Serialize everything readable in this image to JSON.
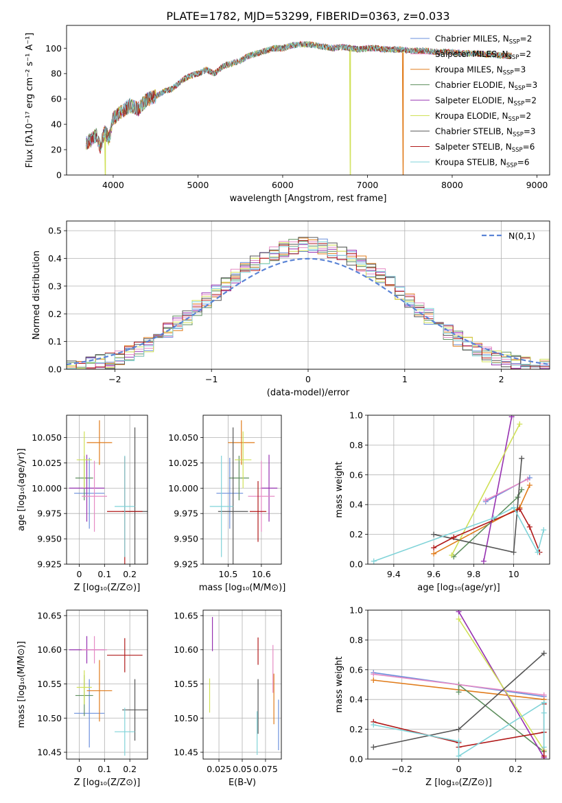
{
  "title": "PLATE=1782, MJD=53299, FIBERID=0363, z=0.033",
  "colors": [
    "#6a8fdc",
    "#e07b1a",
    "#5e8f5e",
    "#9630b0",
    "#e58ac4",
    "#cfe055",
    "#555555",
    "#b01818",
    "#7fd3d8"
  ],
  "chart_data": [
    {
      "id": "spectrum",
      "type": "line",
      "xlabel": "wavelength [Angstrom, rest frame]",
      "ylabel": "Flux [fλ10⁻¹⁷ erg cm⁻² s⁻¹ A⁻¹]",
      "xlim": [
        3450,
        9150
      ],
      "ylim": [
        0,
        118
      ],
      "xticks": [
        4000,
        5000,
        6000,
        7000,
        8000,
        9000
      ],
      "yticks": [
        0,
        20,
        40,
        60,
        80,
        100
      ],
      "legend_position": "right",
      "legend": [
        "Chabrier MILES, N_SSP=2",
        "Salpeter MILES, N_SSP=2",
        "Kroupa MILES, N_SSP=3",
        "Chabrier ELODIE, N_SSP=3",
        "Salpeter ELODIE, N_SSP=2",
        "Kroupa ELODIE, N_SSP=2",
        "Chabrier STELIB, N_SSP=3",
        "Salpeter STELIB, N_SSP=6",
        "Kroupa STELIB, N_SSP=6"
      ],
      "legend_colors": [
        "#6a8fdc",
        "#e58ac4",
        "#e07b1a",
        "#5e8f5e",
        "#9630b0",
        "#cfe055",
        "#555555",
        "#b01818",
        "#7fd3d8"
      ],
      "x": [
        3680,
        3750,
        3800,
        3850,
        3900,
        3950,
        4000,
        4100,
        4200,
        4300,
        4400,
        4500,
        4600,
        4700,
        4800,
        4900,
        5000,
        5100,
        5200,
        5300,
        5400,
        5500,
        5600,
        5700,
        5800,
        5900,
        6000,
        6100,
        6200,
        6300,
        6400,
        6500,
        6600,
        6700,
        6800,
        6900,
        7000,
        7100,
        7200,
        7300,
        7400,
        7500,
        7600,
        7700,
        7800,
        7900,
        8000,
        8100,
        8200,
        8300,
        8400,
        8500,
        8600,
        8700
      ],
      "y": [
        25,
        28,
        32,
        22,
        35,
        28,
        45,
        50,
        55,
        52,
        60,
        62,
        66,
        68,
        74,
        78,
        80,
        83,
        80,
        86,
        88,
        90,
        94,
        96,
        98,
        100,
        100,
        102,
        103,
        103,
        102,
        101,
        100,
        101,
        100,
        99,
        100,
        100,
        99,
        99,
        99,
        98,
        98,
        98,
        97,
        97,
        97,
        96,
        96,
        96,
        95,
        95,
        94,
        94
      ],
      "cutoffs": [
        {
          "series": "Kroupa ELODIE, N_SSP=2",
          "x": 3910
        },
        {
          "series": "Kroupa ELODIE, N_SSP=2",
          "x": 6800
        },
        {
          "series": "Kroupa MILES, N_SSP=3",
          "x": 7420
        }
      ]
    },
    {
      "id": "residuals",
      "type": "histogram",
      "xlabel": "(data-model)/error",
      "ylabel": "Normed distribution",
      "xlim": [
        -2.5,
        2.5
      ],
      "ylim": [
        0,
        0.535
      ],
      "xticks": [
        -2,
        -1,
        0,
        1,
        2
      ],
      "yticks": [
        0.0,
        0.1,
        0.2,
        0.3,
        0.4,
        0.5
      ],
      "bin_width": 0.1,
      "legend_position": "top-right",
      "legend": [
        "N(0,1)"
      ],
      "curve": "normal pdf, mean 0, sigma 1"
    },
    {
      "id": "age_vs_Z",
      "type": "errorbar",
      "xlabel": "Z [log₁₀(Z/Z⊙)]",
      "ylabel": "age  [log₁₀(age/yr)]",
      "xlim": [
        -0.05,
        0.27
      ],
      "ylim": [
        9.925,
        10.072
      ],
      "xticks": [
        0.0,
        0.1,
        0.2
      ],
      "yticks": [
        9.925,
        9.95,
        9.975,
        10.0,
        10.025,
        10.05
      ],
      "points": [
        {
          "x": 0.04,
          "xerr": 0.06,
          "y": 9.995,
          "yerr": 0.035,
          "color": "#6a8fdc"
        },
        {
          "x": 0.08,
          "xerr": 0.05,
          "y": 10.045,
          "yerr": 0.022,
          "color": "#e07b1a"
        },
        {
          "x": 0.02,
          "xerr": 0.035,
          "y": 10.01,
          "yerr": 0.022,
          "color": "#5e8f5e"
        },
        {
          "x": 0.03,
          "xerr": 0.07,
          "y": 10.0,
          "yerr": 0.033,
          "color": "#9630b0"
        },
        {
          "x": 0.06,
          "xerr": 0.05,
          "y": 9.992,
          "yerr": 0.035,
          "color": "#e58ac4"
        },
        {
          "x": 0.02,
          "xerr": 0.03,
          "y": 10.028,
          "yerr": 0.028,
          "color": "#cfe055"
        },
        {
          "x": 0.22,
          "xerr": 0.05,
          "y": 9.977,
          "yerr": 0.083,
          "color": "#555555"
        },
        {
          "x": 0.18,
          "xerr": 0.07,
          "y": 9.977,
          "yerr": 0.054,
          "color": "#b01818"
        },
        {
          "x": 0.18,
          "xerr": 0.04,
          "y": 9.982,
          "yerr": 0.05,
          "color": "#7fd3d8"
        }
      ]
    },
    {
      "id": "age_vs_mass",
      "type": "errorbar",
      "xlabel": "mass [log₁₀(M/M⊙)]",
      "xlim": [
        10.425,
        10.66
      ],
      "ylim": [
        9.925,
        10.072
      ],
      "xticks": [
        10.5,
        10.6
      ],
      "yticks": [
        9.925,
        9.95,
        9.975,
        10.0,
        10.025,
        10.05
      ],
      "points": [
        {
          "x": 10.505,
          "xerr": 0.04,
          "y": 9.995,
          "yerr": 0.035,
          "color": "#6a8fdc"
        },
        {
          "x": 10.54,
          "xerr": 0.04,
          "y": 10.045,
          "yerr": 0.022,
          "color": "#e07b1a"
        },
        {
          "x": 10.533,
          "xerr": 0.03,
          "y": 10.01,
          "yerr": 0.022,
          "color": "#5e8f5e"
        },
        {
          "x": 10.623,
          "xerr": 0.025,
          "y": 10.0,
          "yerr": 0.033,
          "color": "#9630b0"
        },
        {
          "x": 10.6,
          "xerr": 0.04,
          "y": 9.992,
          "yerr": 0.035,
          "color": "#e58ac4"
        },
        {
          "x": 10.545,
          "xerr": 0.025,
          "y": 10.028,
          "yerr": 0.028,
          "color": "#cfe055"
        },
        {
          "x": 10.515,
          "xerr": 0.045,
          "y": 9.977,
          "yerr": 0.083,
          "color": "#555555"
        },
        {
          "x": 10.59,
          "xerr": 0.025,
          "y": 9.977,
          "yerr": 0.03,
          "color": "#b01818"
        },
        {
          "x": 10.48,
          "xerr": 0.035,
          "y": 9.982,
          "yerr": 0.05,
          "color": "#7fd3d8"
        }
      ]
    },
    {
      "id": "weight_vs_age",
      "type": "line",
      "xlabel": "age  [log₁₀(age/yr)]",
      "ylabel": "mass weight",
      "xlim": [
        9.27,
        10.18
      ],
      "ylim": [
        0,
        1
      ],
      "xticks": [
        9.4,
        9.6,
        9.8,
        10.0
      ],
      "yticks": [
        0.0,
        0.2,
        0.4,
        0.6,
        0.8,
        1.0
      ],
      "series": [
        {
          "color": "#6a8fdc",
          "x": [
            10.08,
            9.86
          ],
          "y": [
            0.58,
            0.42
          ]
        },
        {
          "color": "#e07b1a",
          "x": [
            9.6,
            10.03,
            10.08
          ],
          "y": [
            0.07,
            0.38,
            0.53
          ]
        },
        {
          "color": "#5e8f5e",
          "x": [
            9.7,
            10.02,
            10.04
          ],
          "y": [
            0.05,
            0.45,
            0.5
          ]
        },
        {
          "color": "#9630b0",
          "x": [
            9.85,
            9.99
          ],
          "y": [
            0.02,
            0.99
          ]
        },
        {
          "color": "#e58ac4",
          "x": [
            10.07,
            9.86
          ],
          "y": [
            0.57,
            0.43
          ]
        },
        {
          "color": "#cfe055",
          "x": [
            9.69,
            10.03
          ],
          "y": [
            0.06,
            0.94
          ]
        },
        {
          "color": "#555555",
          "x": [
            9.6,
            10.0,
            10.04
          ],
          "y": [
            0.2,
            0.08,
            0.71
          ]
        },
        {
          "color": "#b01818",
          "x": [
            9.6,
            9.7,
            10.03,
            10.08,
            10.13
          ],
          "y": [
            0.11,
            0.18,
            0.37,
            0.25,
            0.08
          ]
        },
        {
          "color": "#7fd3d8",
          "x": [
            9.3,
            9.9,
            10.0,
            10.12,
            10.15
          ],
          "y": [
            0.02,
            0.31,
            0.38,
            0.08,
            0.23
          ]
        }
      ]
    },
    {
      "id": "mass_vs_Z",
      "type": "errorbar",
      "xlabel": "Z [log₁₀(Z/Z⊙)]",
      "ylabel": "mass [log₁₀(M/M⊙)]",
      "xlim": [
        -0.05,
        0.27
      ],
      "ylim": [
        10.44,
        10.658
      ],
      "xticks": [
        0.0,
        0.1,
        0.2
      ],
      "yticks": [
        10.45,
        10.5,
        10.55,
        10.6,
        10.65
      ],
      "points": [
        {
          "x": 0.04,
          "xerr": 0.06,
          "y": 10.507,
          "yerr": 0.05,
          "color": "#6a8fdc"
        },
        {
          "x": 0.08,
          "xerr": 0.05,
          "y": 10.54,
          "yerr": 0.045,
          "color": "#e07b1a"
        },
        {
          "x": 0.02,
          "xerr": 0.035,
          "y": 10.533,
          "yerr": 0.03,
          "color": "#5e8f5e"
        },
        {
          "x": 0.03,
          "xerr": 0.07,
          "y": 10.6,
          "yerr": 0.02,
          "color": "#9630b0"
        },
        {
          "x": 0.06,
          "xerr": 0.05,
          "y": 10.6,
          "yerr": 0.02,
          "color": "#e58ac4"
        },
        {
          "x": 0.02,
          "xerr": 0.03,
          "y": 10.545,
          "yerr": 0.025,
          "color": "#cfe055"
        },
        {
          "x": 0.22,
          "xerr": 0.05,
          "y": 10.512,
          "yerr": 0.045,
          "color": "#555555"
        },
        {
          "x": 0.18,
          "xerr": 0.07,
          "y": 10.592,
          "yerr": 0.025,
          "color": "#b01818"
        },
        {
          "x": 0.18,
          "xerr": 0.04,
          "y": 10.48,
          "yerr": 0.035,
          "color": "#7fd3d8"
        }
      ]
    },
    {
      "id": "mass_vs_ebv",
      "type": "errorbar",
      "xlabel": "E(B-V)",
      "xlim": [
        0.008,
        0.092
      ],
      "ylim": [
        10.44,
        10.658
      ],
      "xticks": [
        0.025,
        0.05,
        0.075
      ],
      "yticks": [
        10.45,
        10.5,
        10.55,
        10.6,
        10.65
      ],
      "points": [
        {
          "x": 0.089,
          "xerr": 0,
          "y": 10.49,
          "yerr": 0.037,
          "color": "#6a8fdc"
        },
        {
          "x": 0.084,
          "xerr": 0,
          "y": 10.528,
          "yerr": 0.037,
          "color": "#e07b1a"
        },
        {
          "x": 0.018,
          "xerr": 0,
          "y": 10.623,
          "yerr": 0.025,
          "color": "#9630b0"
        },
        {
          "x": 0.083,
          "xerr": 0,
          "y": 10.572,
          "yerr": 0.035,
          "color": "#e58ac4"
        },
        {
          "x": 0.015,
          "xerr": 0,
          "y": 10.533,
          "yerr": 0.025,
          "color": "#cfe055"
        },
        {
          "x": 0.067,
          "xerr": 0,
          "y": 10.517,
          "yerr": 0.04,
          "color": "#555555"
        },
        {
          "x": 0.067,
          "xerr": 0,
          "y": 10.598,
          "yerr": 0.02,
          "color": "#b01818"
        },
        {
          "x": 0.066,
          "xerr": 0,
          "y": 10.478,
          "yerr": 0.032,
          "color": "#7fd3d8"
        }
      ]
    },
    {
      "id": "weight_vs_Z",
      "type": "line",
      "xlabel": "Z [log₁₀(Z/Z⊙)]",
      "ylabel": "mass weight",
      "xlim": [
        -0.32,
        0.32
      ],
      "ylim": [
        0,
        1
      ],
      "xticks": [
        -0.2,
        0.0,
        0.2
      ],
      "yticks": [
        0.0,
        0.2,
        0.4,
        0.6,
        0.8,
        1.0
      ],
      "series": [
        {
          "color": "#6a8fdc",
          "x": [
            -0.3,
            0.3
          ],
          "y": [
            0.58,
            0.42
          ]
        },
        {
          "color": "#e07b1a",
          "x": [
            -0.3,
            0.3
          ],
          "y": [
            0.53,
            0.4
          ]
        },
        {
          "color": "#5e8f5e",
          "x": [
            0.0,
            0.0,
            0.3
          ],
          "y": [
            0.45,
            0.5,
            0.05
          ]
        },
        {
          "color": "#9630b0",
          "x": [
            0.0,
            0.3
          ],
          "y": [
            0.99,
            0.01
          ]
        },
        {
          "color": "#e58ac4",
          "x": [
            -0.3,
            0.3
          ],
          "y": [
            0.57,
            0.43
          ]
        },
        {
          "color": "#cfe055",
          "x": [
            0.0,
            0.3
          ],
          "y": [
            0.94,
            0.06
          ]
        },
        {
          "color": "#555555",
          "x": [
            -0.3,
            0.0,
            0.3
          ],
          "y": [
            0.08,
            0.2,
            0.71
          ]
        },
        {
          "color": "#b01818",
          "x": [
            -0.3,
            0.0,
            0.0,
            0.3,
            0.3,
            0.3
          ],
          "y": [
            0.25,
            0.11,
            0.08,
            0.18,
            0.37,
            0.02
          ]
        },
        {
          "color": "#7fd3d8",
          "x": [
            -0.3,
            0.0,
            0.0,
            0.3,
            0.3,
            0.3
          ],
          "y": [
            0.23,
            0.12,
            0.02,
            0.38,
            0.08,
            0.31
          ]
        }
      ]
    }
  ]
}
